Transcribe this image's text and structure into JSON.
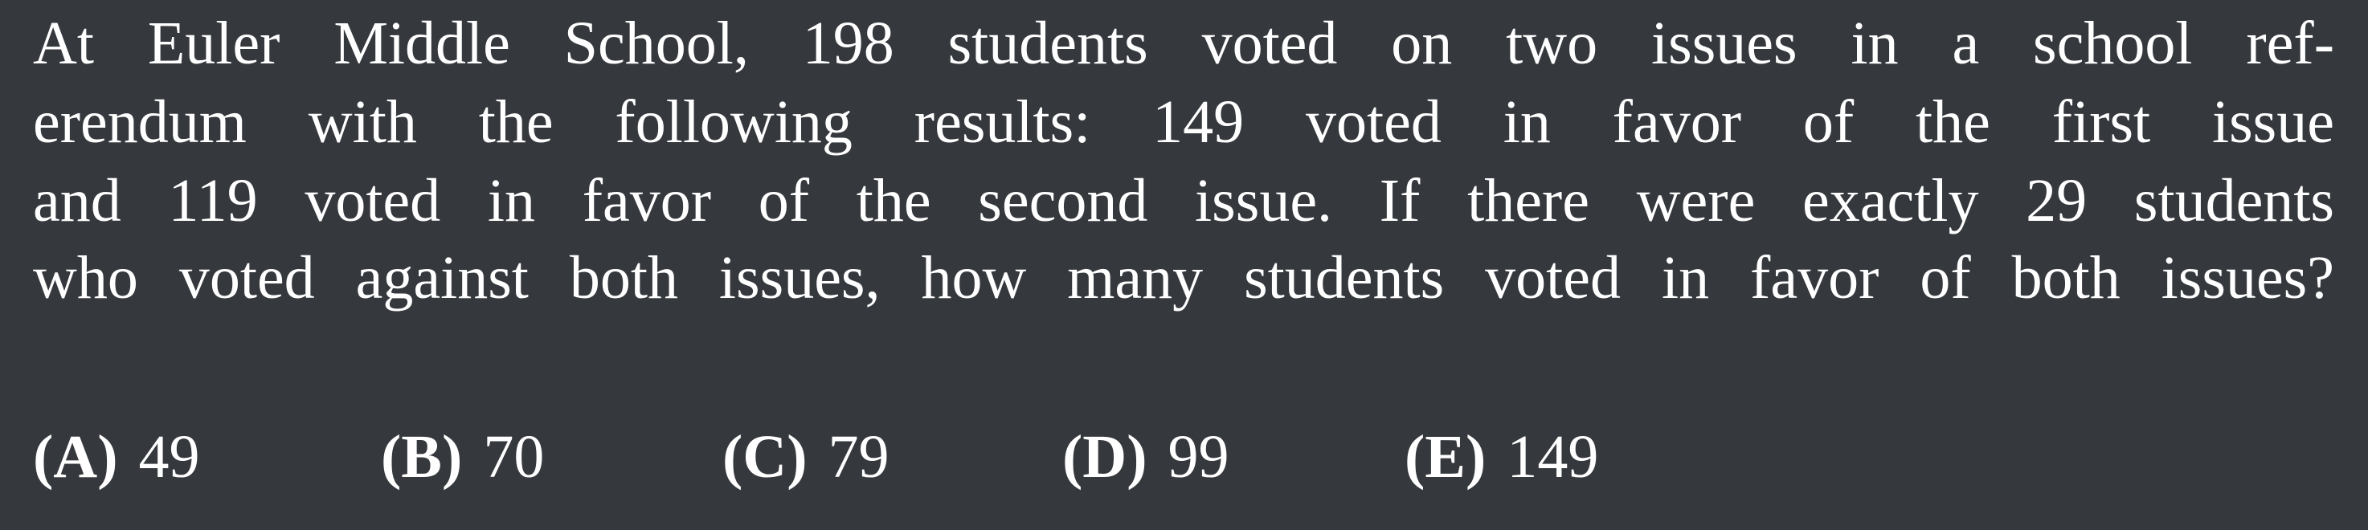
{
  "problem": {
    "lines": [
      "At Euler Middle School, 198 students voted on two issues in a school ref-",
      "erendum with the following results:  149 voted in favor of the first issue",
      "and 119 voted in favor of the second issue.  If there were exactly 29 students",
      "who voted against both issues, how many students voted in favor of both issues?"
    ]
  },
  "choices": [
    {
      "letter": "(A)",
      "value": 49
    },
    {
      "letter": "(B)",
      "value": 70
    },
    {
      "letter": "(C)",
      "value": 79
    },
    {
      "letter": "(D)",
      "value": 99
    },
    {
      "letter": "(E)",
      "value": 149
    }
  ]
}
